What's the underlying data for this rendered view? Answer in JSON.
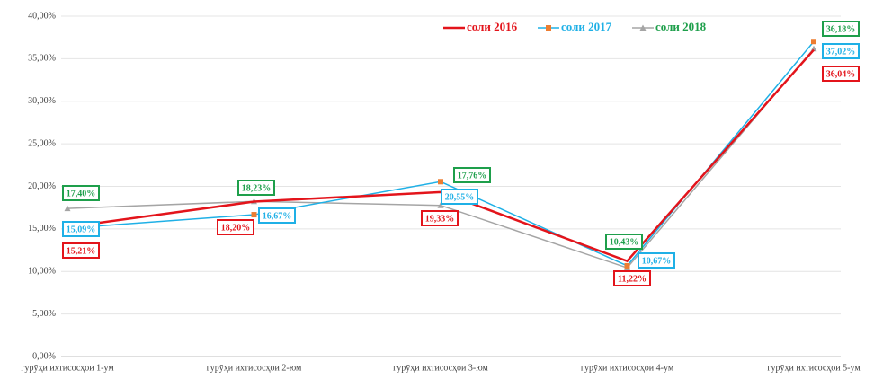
{
  "chart_data": {
    "type": "line",
    "categories": [
      "гурӯҳи ихтисосҳои 1-ум",
      "гурӯҳи ихтисосҳои 2-юм",
      "гурӯҳи ихтисосҳои 3-юм",
      "гурӯҳи ихтисосҳои 4-ум",
      "гурӯҳи ихтисосҳои 5-ум"
    ],
    "series": [
      {
        "name": "соли 2016",
        "color": "#e3141b",
        "label_color": "#e3141b",
        "values": [
          15.21,
          18.2,
          19.33,
          11.22,
          36.04
        ],
        "value_labels": [
          "15,21%",
          "18,20%",
          "19,33%",
          "11,22%",
          "36,04%"
        ]
      },
      {
        "name": "соли 2017",
        "color": "#1fb0e6",
        "marker_color": "#ed7d31",
        "marker": "square",
        "label_color": "#1fb0e6",
        "values": [
          15.09,
          16.67,
          20.55,
          10.67,
          37.02
        ],
        "value_labels": [
          "15,09%",
          "16,67%",
          "20,55%",
          "10,67%",
          "37,02%"
        ]
      },
      {
        "name": "соли 2018",
        "color": "#a5a5a5",
        "marker_color": "#a5a5a5",
        "marker": "triangle",
        "label_color": "#1e9f4b",
        "values": [
          17.4,
          18.23,
          17.76,
          10.43,
          36.18
        ],
        "value_labels": [
          "17,40%",
          "18,23%",
          "17,76%",
          "10,43%",
          "36,18%"
        ]
      }
    ],
    "ylim": [
      0,
      40
    ],
    "yticks": [
      {
        "value": 0,
        "label": "0,00%"
      },
      {
        "value": 5,
        "label": "5,00%"
      },
      {
        "value": 10,
        "label": "10,00%"
      },
      {
        "value": 15,
        "label": "15,00%"
      },
      {
        "value": 20,
        "label": "20,00%"
      },
      {
        "value": 25,
        "label": "25,00%"
      },
      {
        "value": 30,
        "label": "30,00%"
      },
      {
        "value": 35,
        "label": "35,00%"
      },
      {
        "value": 40,
        "label": "40,00%"
      }
    ],
    "grid": true
  }
}
